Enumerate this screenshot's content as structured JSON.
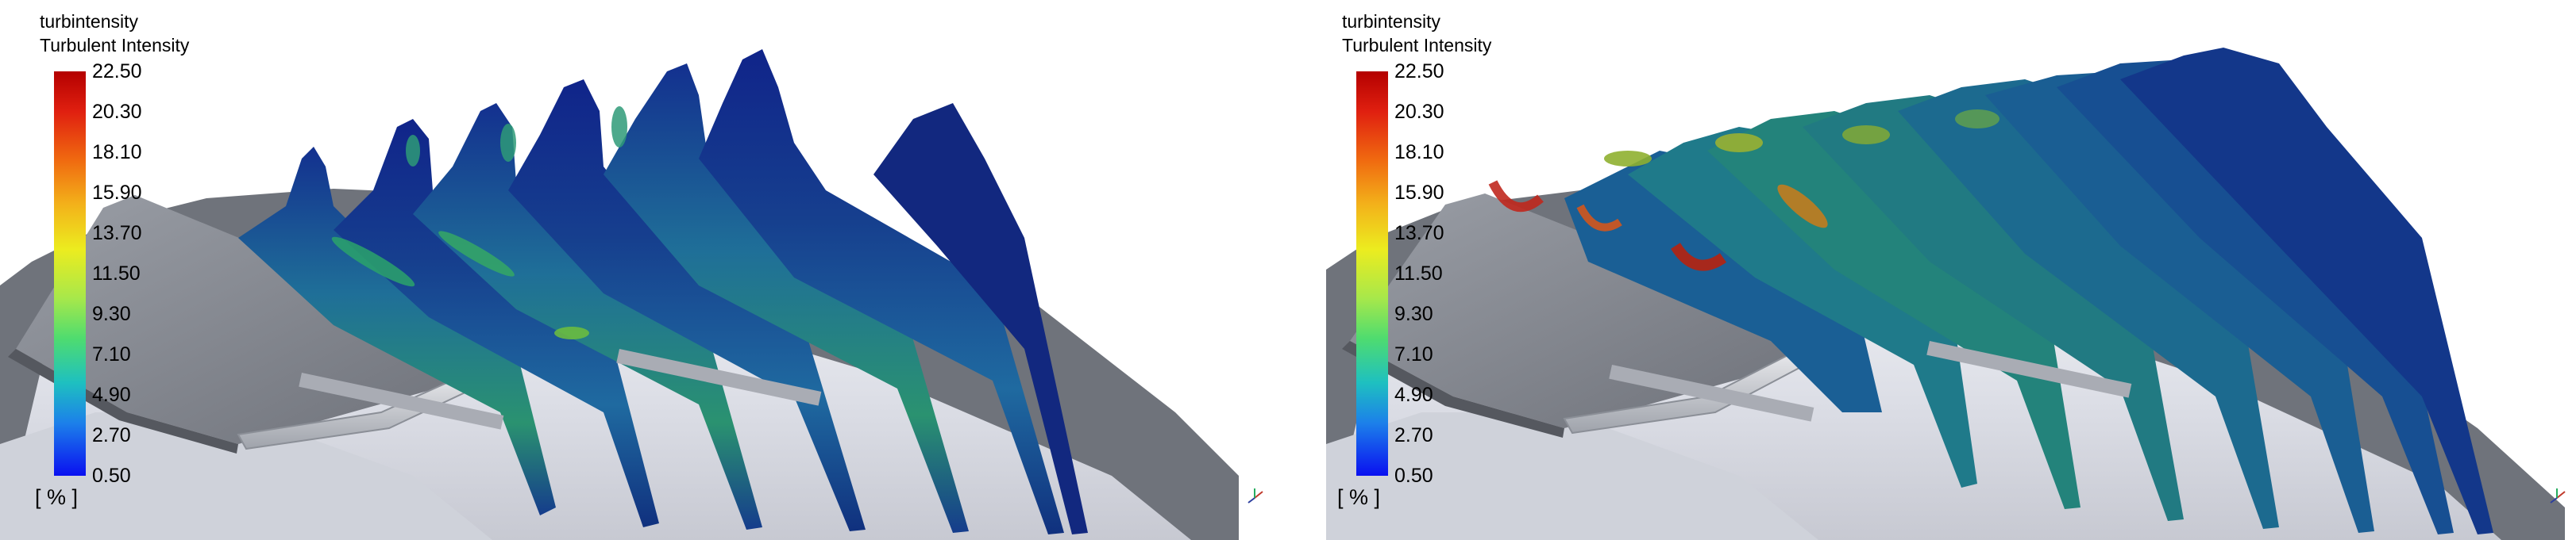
{
  "colors": {
    "plate": "#8a8e96",
    "surface": "#dfe1e8",
    "low": "#0a10f0",
    "high": "#b40000"
  },
  "panels": [
    {
      "legend": {
        "var_name": "turbintensity",
        "title": "Turbulent Intensity",
        "ticks": [
          "22.50",
          "20.30",
          "18.10",
          "15.90",
          "13.70",
          "11.50",
          "9.30",
          "7.10",
          "4.90",
          "2.70",
          "0.50"
        ],
        "unit": "[ % ]"
      },
      "axes_icon": "axes-triad-icon"
    },
    {
      "legend": {
        "var_name": "turbintensity",
        "title": "Turbulent Intensity",
        "ticks": [
          "22.50",
          "20.30",
          "18.10",
          "15.90",
          "13.70",
          "11.50",
          "9.30",
          "7.10",
          "4.90",
          "2.70",
          "0.50"
        ],
        "unit": "[ % ]"
      },
      "axes_icon": "axes-triad-icon"
    }
  ]
}
